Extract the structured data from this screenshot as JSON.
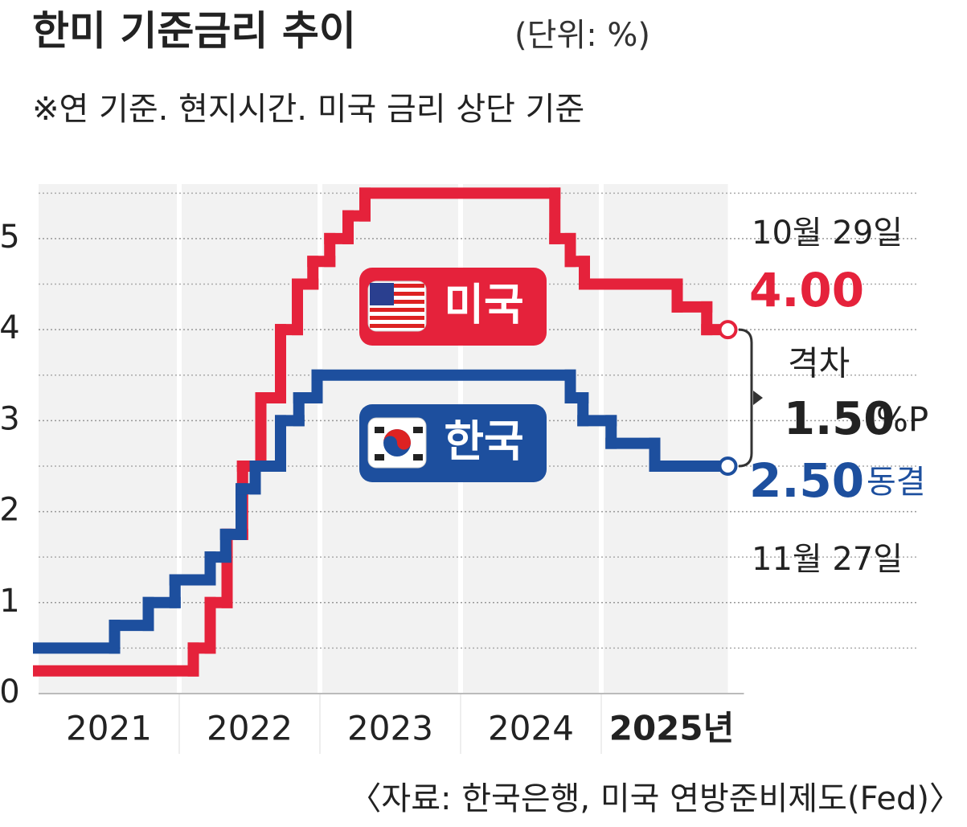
{
  "chart_data": {
    "type": "step-line",
    "title": "한미 기준금리 추이",
    "unit_note": "(단위: %)",
    "subtitle": "※연 기준. 현지시간. 미국 금리 상단 기준",
    "source": "〈자료: 한국은행, 미국 연방준비제도(Fed)〉",
    "xlim": [
      2021,
      2026
    ],
    "xticks": [
      {
        "value": 2021.5,
        "label": "2021"
      },
      {
        "value": 2022.5,
        "label": "2022"
      },
      {
        "value": 2023.5,
        "label": "2023"
      },
      {
        "value": 2024.5,
        "label": "2024"
      },
      {
        "value": 2025.5,
        "label": "2025년"
      }
    ],
    "year_bounds": [
      2022,
      2023,
      2024,
      2025
    ],
    "ylim": [
      0,
      5.6
    ],
    "yticks": [
      0,
      1,
      2,
      3,
      4,
      5
    ],
    "minor_yticks": [
      0.5,
      1.5,
      2.5,
      3.5,
      4.5,
      5.5
    ],
    "grid": true,
    "series": [
      {
        "name": "미국",
        "color": "#e5223b",
        "x": [
          2021.0,
          2022.1,
          2022.22,
          2022.34,
          2022.45,
          2022.58,
          2022.72,
          2022.84,
          2022.95,
          2023.07,
          2023.2,
          2023.32,
          2024.67,
          2024.78,
          2024.88,
          2025.54,
          2025.75,
          2025.9
        ],
        "values": [
          0.25,
          0.5,
          1.0,
          1.75,
          2.5,
          3.25,
          4.0,
          4.5,
          4.75,
          5.0,
          5.25,
          5.5,
          5.0,
          4.75,
          4.5,
          4.25,
          4.0,
          4.0
        ],
        "date": "10월 29일",
        "end_label": "4.00"
      },
      {
        "name": "한국",
        "color": "#1d4f9e",
        "x": [
          2021.0,
          2021.54,
          2021.78,
          2021.97,
          2022.22,
          2022.33,
          2022.44,
          2022.54,
          2022.72,
          2022.85,
          2022.98,
          2024.78,
          2024.87,
          2025.07,
          2025.38,
          2025.9
        ],
        "values": [
          0.5,
          0.75,
          1.0,
          1.25,
          1.5,
          1.75,
          2.25,
          2.5,
          3.0,
          3.25,
          3.5,
          3.25,
          3.0,
          2.75,
          2.5,
          2.5
        ],
        "date": "11월 27일",
        "end_label": "2.50",
        "note": "동결"
      }
    ],
    "gap": {
      "label": "격차",
      "value": 1.5,
      "value_label": "1.50",
      "unit": "%P"
    }
  }
}
